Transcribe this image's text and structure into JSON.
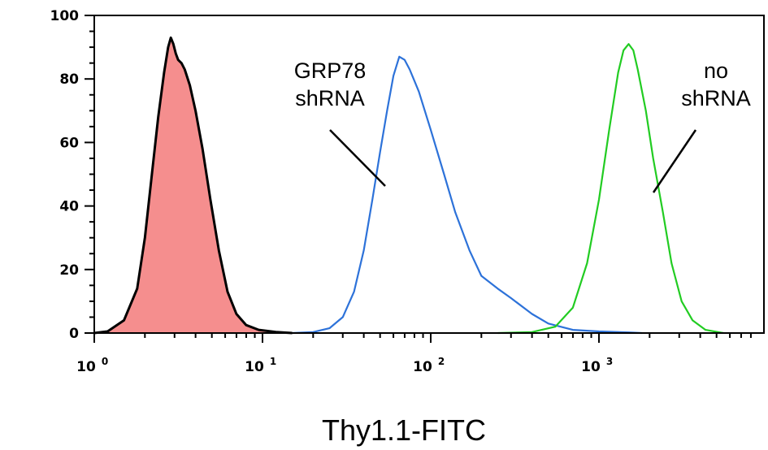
{
  "chart_data": {
    "type": "area",
    "xlabel": "Thy1.1-FITC",
    "ylabel": "",
    "x_scale": "log",
    "xlim": [
      1,
      8000
    ],
    "ylim": [
      0,
      100
    ],
    "y_ticks": [
      0,
      20,
      40,
      60,
      80,
      100
    ],
    "x_ticks": [
      {
        "base": "10",
        "exp": "0",
        "value": 1
      },
      {
        "base": "10",
        "exp": "1",
        "value": 10
      },
      {
        "base": "10",
        "exp": "2",
        "value": 100
      },
      {
        "base": "10",
        "exp": "3",
        "value": 1000
      }
    ],
    "grid": false,
    "series": [
      {
        "color": "#000000",
        "fill": "#f58e8e",
        "points": [
          [
            1.0,
            0
          ],
          [
            1.2,
            0.5
          ],
          [
            1.5,
            4
          ],
          [
            1.8,
            14
          ],
          [
            2.0,
            30
          ],
          [
            2.2,
            50
          ],
          [
            2.4,
            68
          ],
          [
            2.6,
            82
          ],
          [
            2.75,
            90
          ],
          [
            2.85,
            93
          ],
          [
            2.95,
            91
          ],
          [
            3.05,
            88
          ],
          [
            3.15,
            86
          ],
          [
            3.3,
            85
          ],
          [
            3.45,
            83
          ],
          [
            3.7,
            78
          ],
          [
            4.0,
            70
          ],
          [
            4.4,
            58
          ],
          [
            4.9,
            42
          ],
          [
            5.5,
            26
          ],
          [
            6.2,
            13
          ],
          [
            7.0,
            6
          ],
          [
            8.0,
            2.5
          ],
          [
            9.5,
            1
          ],
          [
            12,
            0.3
          ],
          [
            15,
            0
          ]
        ]
      },
      {
        "name": "GRP78 shRNA",
        "color": "#2d72d9",
        "points": [
          [
            15,
            0
          ],
          [
            20,
            0.3
          ],
          [
            25,
            1.5
          ],
          [
            30,
            5
          ],
          [
            35,
            13
          ],
          [
            40,
            26
          ],
          [
            45,
            42
          ],
          [
            50,
            57
          ],
          [
            55,
            70
          ],
          [
            60,
            81
          ],
          [
            65,
            87
          ],
          [
            70,
            86
          ],
          [
            75,
            83
          ],
          [
            85,
            76
          ],
          [
            100,
            64
          ],
          [
            120,
            50
          ],
          [
            140,
            38
          ],
          [
            170,
            26
          ],
          [
            200,
            18
          ],
          [
            250,
            14
          ],
          [
            300,
            11
          ],
          [
            400,
            6
          ],
          [
            500,
            3
          ],
          [
            700,
            1
          ],
          [
            1000,
            0.5
          ],
          [
            1500,
            0.2
          ],
          [
            1800,
            0
          ]
        ]
      },
      {
        "name": "no shRNA",
        "color": "#22cc22",
        "points": [
          [
            250,
            0
          ],
          [
            400,
            0.3
          ],
          [
            550,
            2
          ],
          [
            700,
            8
          ],
          [
            850,
            22
          ],
          [
            1000,
            42
          ],
          [
            1150,
            64
          ],
          [
            1300,
            82
          ],
          [
            1400,
            89
          ],
          [
            1500,
            91
          ],
          [
            1600,
            89
          ],
          [
            1700,
            83
          ],
          [
            1900,
            70
          ],
          [
            2100,
            55
          ],
          [
            2400,
            38
          ],
          [
            2700,
            22
          ],
          [
            3100,
            10
          ],
          [
            3600,
            4
          ],
          [
            4300,
            1
          ],
          [
            5500,
            0
          ]
        ]
      }
    ],
    "annotations": [
      {
        "lines": [
          "GRP78",
          "shRNA"
        ],
        "target": [
          52,
          46
        ]
      },
      {
        "lines": [
          "no",
          "shRNA"
        ],
        "target": [
          2000,
          44
        ]
      }
    ]
  }
}
